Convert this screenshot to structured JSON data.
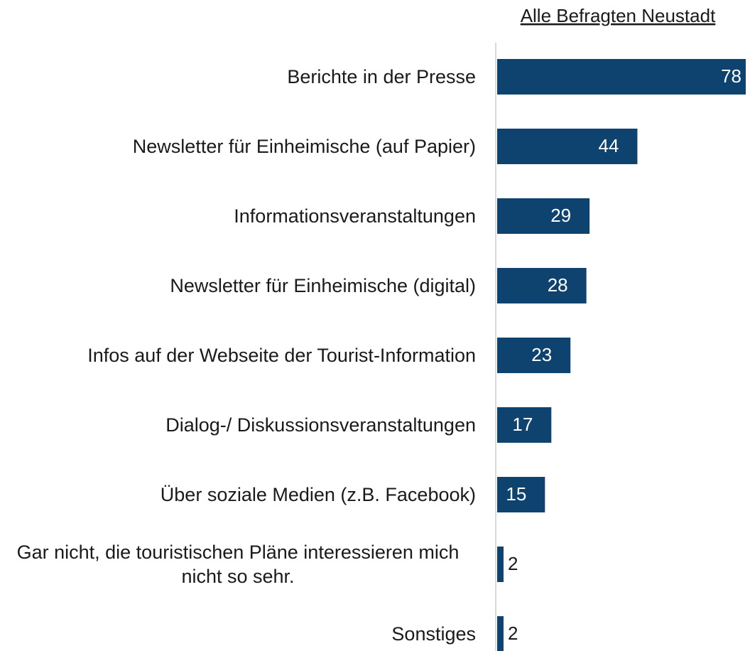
{
  "chart_data": {
    "type": "barh",
    "title": "Alle Befragten Neustadt",
    "categories": [
      "Berichte in der Presse",
      "Newsletter für Einheimische (auf Papier)",
      "Informationsveranstaltungen",
      "Newsletter für Einheimische (digital)",
      "Infos auf der Webseite der Tourist-Information",
      "Dialog-/ Diskussionsveranstaltungen",
      "Über soziale Medien (z.B. Facebook)",
      "Gar nicht, die touristischen Pläne interessieren mich nicht so sehr.",
      "Sonstiges"
    ],
    "values": [
      78,
      44,
      29,
      28,
      23,
      17,
      15,
      2,
      2
    ],
    "color": "#0e426f"
  }
}
